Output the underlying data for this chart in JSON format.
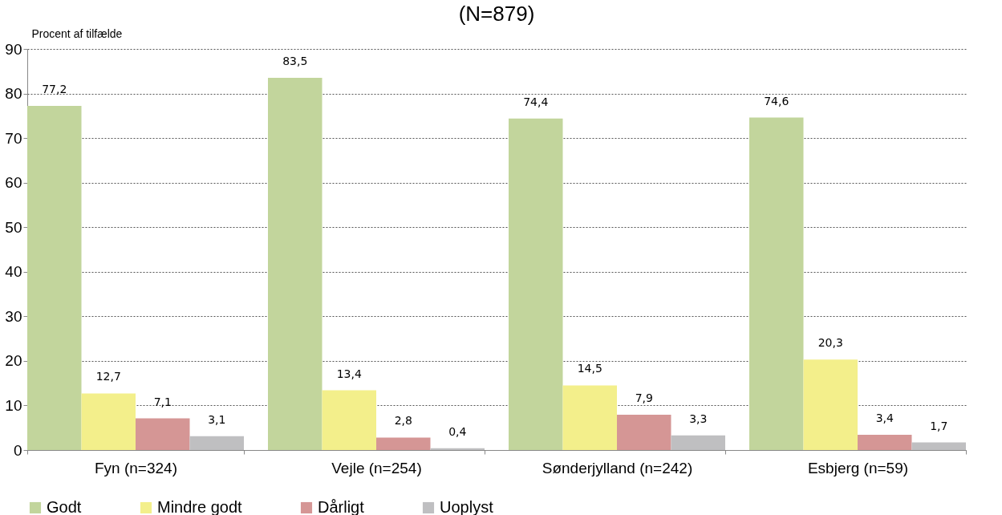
{
  "chart_data": {
    "type": "bar",
    "title": "(N=879)",
    "ylabel": "Procent af tilfælde",
    "categories": [
      "Fyn (n=324)",
      "Vejle (n=254)",
      "Sønderjylland (n=242)",
      "Esbjerg (n=59)"
    ],
    "series": [
      {
        "name": "Godt",
        "color": "#c2d59c",
        "values": [
          77.2,
          83.5,
          74.4,
          74.6
        ],
        "value_labels": [
          "77,2",
          "83,5",
          "74,4",
          "74,6"
        ]
      },
      {
        "name": "Mindre godt",
        "color": "#f3ef8b",
        "values": [
          12.7,
          13.4,
          14.5,
          20.3
        ],
        "value_labels": [
          "12,7",
          "13,4",
          "14,5",
          "20,3"
        ]
      },
      {
        "name": "Dårligt",
        "color": "#d59695",
        "values": [
          7.1,
          2.8,
          7.9,
          3.4
        ],
        "value_labels": [
          "7,1",
          "2,8",
          "7,9",
          "3,4"
        ]
      },
      {
        "name": "Uoplyst",
        "color": "#bfbfc1",
        "values": [
          3.1,
          0.4,
          3.3,
          1.7
        ],
        "value_labels": [
          "3,1",
          "0,4",
          "3,3",
          "1,7"
        ]
      }
    ],
    "ylim": [
      0,
      90
    ],
    "yticks": [
      0,
      10,
      20,
      30,
      40,
      50,
      60,
      70,
      80,
      90
    ],
    "grid": "y",
    "legend": "bottom"
  }
}
